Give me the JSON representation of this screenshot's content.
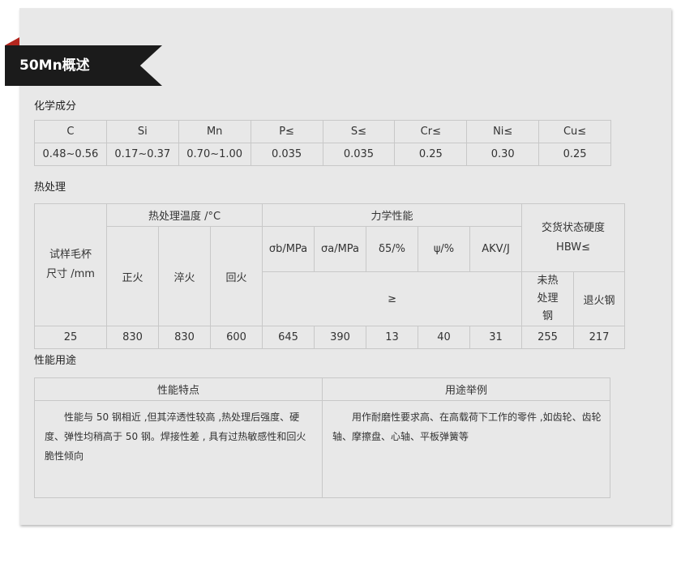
{
  "banner": {
    "title": "50Mn概述"
  },
  "chem": {
    "heading": "化学成分",
    "headers": [
      "C",
      "Si",
      "Mn",
      "P≤",
      "S≤",
      "Cr≤",
      "Ni≤",
      "Cu≤"
    ],
    "values": [
      "0.48~0.56",
      "0.17~0.37",
      "0.70~1.00",
      "0.035",
      "0.035",
      "0.25",
      "0.30",
      "0.25"
    ]
  },
  "heat": {
    "heading": "热处理",
    "sample": "试样毛杯尺寸 /mm",
    "temp": "热处理温度 /°C",
    "mech": "力学性能",
    "hard": "交货状态硬度 HBW≤",
    "temps": [
      "正火",
      "淬火",
      "回火"
    ],
    "mechs": [
      "σb/MPa",
      "σa/MPa",
      "δ5/%",
      "ψ/%",
      "AKV/J"
    ],
    "ge": "≥",
    "hards": [
      "未热处理钢",
      "退火钢"
    ],
    "values": [
      "25",
      "830",
      "830",
      "600",
      "645",
      "390",
      "13",
      "40",
      "31",
      "255",
      "217"
    ]
  },
  "usage": {
    "heading": "性能用途",
    "h1": "性能特点",
    "h2": "用途举例",
    "t1": "性能与 50 钢相近 ,但其淬透性较高 ,热处理后强度、硬度、弹性均稍高于 50 钢。焊接性差 , 具有过热敏感性和回火脆性倾向",
    "t2": "用作耐磨性要求高、在高载荷下工作的零件 ,如齿轮、齿轮轴、摩擦盘、心轴、平板弹簧等"
  }
}
